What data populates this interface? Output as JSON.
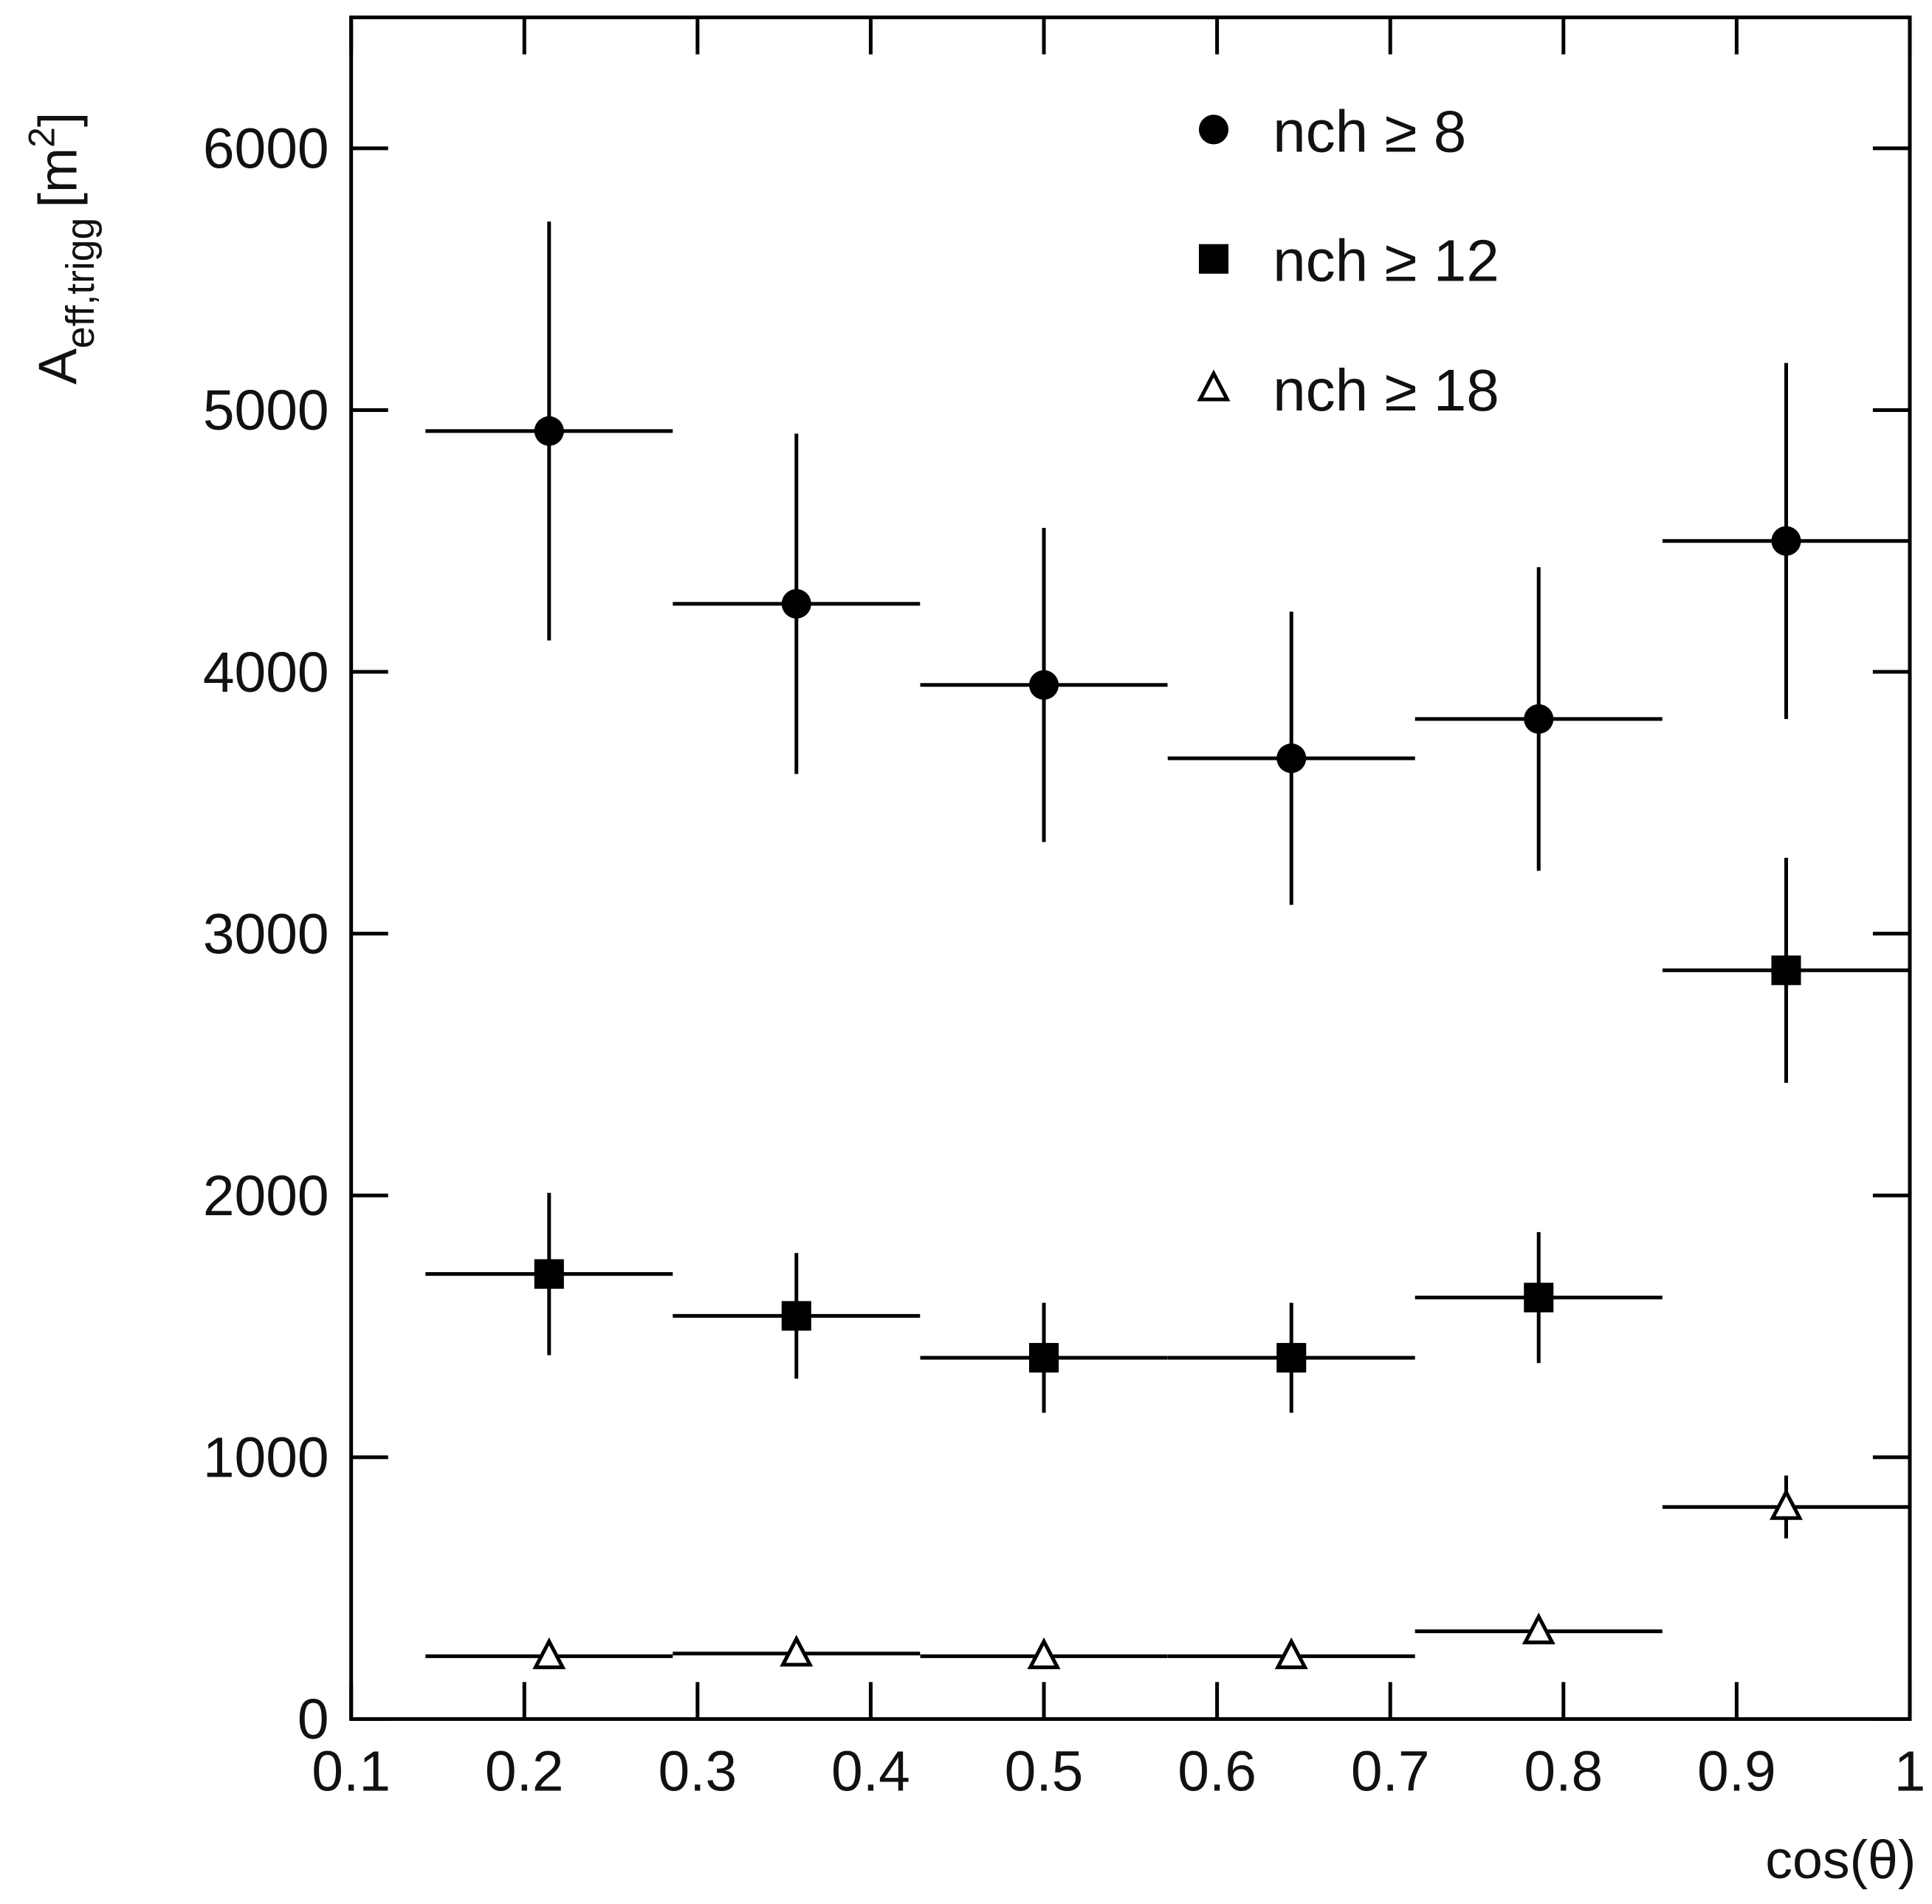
{
  "chart_data": {
    "type": "errorbar",
    "xlabel": "cos(θ)",
    "ylabel": {
      "main": "A",
      "sub": "eff,trigg",
      "unit": "[m",
      "sup": "2",
      "close": "]"
    },
    "xlim": [
      0.1,
      1
    ],
    "ylim": [
      0,
      6500
    ],
    "xticks": [
      0.1,
      0.2,
      0.3,
      0.4,
      0.5,
      0.6,
      0.7,
      0.8,
      0.9,
      1
    ],
    "yticks": [
      0,
      1000,
      2000,
      3000,
      4000,
      5000,
      6000
    ],
    "legend": "upper right",
    "x": [
      0.2143,
      0.3571,
      0.5,
      0.6429,
      0.7857,
      0.9286
    ],
    "xerr": [
      0.0714,
      0.0714,
      0.0714,
      0.0714,
      0.0714,
      0.0714
    ],
    "series": [
      {
        "name": "nch ≥ 8",
        "marker": "circle",
        "color": "#000000",
        "values": [
          4920,
          4260,
          3950,
          3670,
          3820,
          4500
        ],
        "yerr": [
          800,
          650,
          600,
          560,
          580,
          680
        ]
      },
      {
        "name": "nch ≥ 12",
        "marker": "square",
        "color": "#000000",
        "values": [
          1700,
          1540,
          1380,
          1380,
          1610,
          2860
        ],
        "yerr": [
          310,
          240,
          210,
          210,
          250,
          430
        ]
      },
      {
        "name": "nch ≥ 18",
        "marker": "triangle",
        "color": "#000000",
        "values": [
          240,
          250,
          240,
          240,
          335,
          810
        ],
        "yerr": [
          0,
          0,
          0,
          0,
          0,
          120
        ]
      }
    ]
  }
}
